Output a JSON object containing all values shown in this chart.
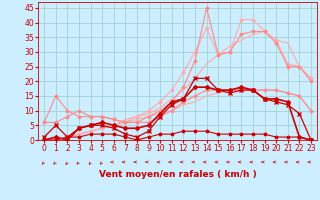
{
  "background_color": "#cceeff",
  "grid_color": "#99cccc",
  "xlabel": "Vent moyen/en rafales ( km/h )",
  "xlabel_color": "#cc0000",
  "xlabel_fontsize": 6.5,
  "tick_color": "#cc0000",
  "tick_fontsize": 5.5,
  "xlim": [
    -0.5,
    23.5
  ],
  "ylim": [
    0,
    47
  ],
  "yticks": [
    0,
    5,
    10,
    15,
    20,
    25,
    30,
    35,
    40,
    45
  ],
  "xticks": [
    0,
    1,
    2,
    3,
    4,
    5,
    6,
    7,
    8,
    9,
    10,
    11,
    12,
    13,
    14,
    15,
    16,
    17,
    18,
    19,
    20,
    21,
    22,
    23
  ],
  "lines": [
    {
      "comment": "dark red flat line near 0 with star markers",
      "x": [
        0,
        1,
        2,
        3,
        4,
        5,
        6,
        7,
        8,
        9,
        10,
        11,
        12,
        13,
        14,
        15,
        16,
        17,
        18,
        19,
        20,
        21,
        22,
        23
      ],
      "y": [
        0,
        0,
        1,
        1,
        2,
        2,
        2,
        1,
        0,
        1,
        2,
        2,
        3,
        3,
        3,
        2,
        2,
        2,
        2,
        2,
        1,
        1,
        1,
        0
      ],
      "color": "#cc0000",
      "lw": 0.8,
      "marker": "*",
      "ms": 2.5,
      "zorder": 5
    },
    {
      "comment": "dark red line with cross markers, moderate rise",
      "x": [
        0,
        1,
        2,
        3,
        4,
        5,
        6,
        7,
        8,
        9,
        10,
        11,
        12,
        13,
        14,
        15,
        16,
        17,
        18,
        19,
        20,
        21,
        22,
        23
      ],
      "y": [
        1,
        5,
        1,
        4,
        5,
        5,
        4,
        2,
        1,
        3,
        8,
        12,
        14,
        21,
        21,
        17,
        16,
        17,
        17,
        14,
        13,
        12,
        9,
        0
      ],
      "color": "#cc0000",
      "lw": 0.9,
      "marker": "x",
      "ms": 3,
      "zorder": 5
    },
    {
      "comment": "light pink diagonal rising line (straight-ish from 0 to ~17)",
      "x": [
        0,
        1,
        2,
        3,
        4,
        5,
        6,
        7,
        8,
        9,
        10,
        11,
        12,
        13,
        14,
        15,
        16,
        17,
        18,
        19,
        20,
        21,
        22,
        23
      ],
      "y": [
        0,
        0,
        1,
        2,
        3,
        4,
        5,
        6,
        7,
        8,
        9,
        10,
        12,
        13,
        15,
        16,
        17,
        17,
        17,
        17,
        17,
        16,
        15,
        10
      ],
      "color": "#ffaaaa",
      "lw": 0.8,
      "marker": null,
      "ms": 0,
      "zorder": 3
    },
    {
      "comment": "light pink steeper diagonal",
      "x": [
        0,
        1,
        2,
        3,
        4,
        5,
        6,
        7,
        8,
        9,
        10,
        11,
        12,
        13,
        14,
        15,
        16,
        17,
        18,
        19,
        20,
        21,
        22,
        23
      ],
      "y": [
        0,
        0,
        1,
        2,
        3,
        4,
        5,
        7,
        8,
        9,
        11,
        14,
        17,
        21,
        26,
        29,
        32,
        34,
        36,
        37,
        34,
        33,
        25,
        21
      ],
      "color": "#ffaaaa",
      "lw": 0.8,
      "marker": null,
      "ms": 0,
      "zorder": 3
    },
    {
      "comment": "light pink steepest diagonal with diamond markers",
      "x": [
        0,
        1,
        2,
        3,
        4,
        5,
        6,
        7,
        8,
        9,
        10,
        11,
        12,
        13,
        14,
        15,
        16,
        17,
        18,
        19,
        20,
        21,
        22,
        23
      ],
      "y": [
        0,
        0,
        1,
        2,
        3,
        4,
        5,
        6,
        8,
        10,
        13,
        17,
        23,
        30,
        38,
        29,
        30,
        41,
        41,
        37,
        34,
        26,
        25,
        21
      ],
      "color": "#ffaaaa",
      "lw": 0.8,
      "marker": "D",
      "ms": 1.5,
      "zorder": 3
    },
    {
      "comment": "medium pink line starting high at 6 then dipping then rising",
      "x": [
        0,
        1,
        2,
        3,
        4,
        5,
        6,
        7,
        8,
        9,
        10,
        11,
        12,
        13,
        14,
        15,
        16,
        17,
        18,
        19,
        20,
        21,
        22,
        23
      ],
      "y": [
        6,
        6,
        8,
        10,
        8,
        8,
        7,
        6,
        6,
        6,
        8,
        10,
        13,
        15,
        17,
        17,
        17,
        17,
        17,
        17,
        17,
        16,
        15,
        10
      ],
      "color": "#ff8888",
      "lw": 0.8,
      "marker": "D",
      "ms": 1.5,
      "zorder": 4
    },
    {
      "comment": "medium pink line spike at x=1 ~15, then drops, then rises",
      "x": [
        0,
        1,
        2,
        3,
        4,
        5,
        6,
        7,
        8,
        9,
        10,
        11,
        12,
        13,
        14,
        15,
        16,
        17,
        18,
        19,
        20,
        21,
        22,
        23
      ],
      "y": [
        6,
        15,
        10,
        8,
        8,
        8,
        7,
        6,
        6,
        8,
        10,
        13,
        18,
        27,
        45,
        29,
        30,
        36,
        37,
        37,
        33,
        25,
        25,
        20
      ],
      "color": "#ff8888",
      "lw": 0.8,
      "marker": "D",
      "ms": 1.5,
      "zorder": 4
    },
    {
      "comment": "dark red bold line moderate values with diamond markers",
      "x": [
        0,
        1,
        2,
        3,
        4,
        5,
        6,
        7,
        8,
        9,
        10,
        11,
        12,
        13,
        14,
        15,
        16,
        17,
        18,
        19,
        20,
        21,
        22,
        23
      ],
      "y": [
        0,
        1,
        0,
        4,
        5,
        6,
        5,
        4,
        4,
        5,
        9,
        13,
        14,
        18,
        18,
        17,
        17,
        18,
        17,
        14,
        14,
        13,
        1,
        0
      ],
      "color": "#cc0000",
      "lw": 1.2,
      "marker": "D",
      "ms": 2,
      "zorder": 5
    }
  ],
  "wind_arrow_angles": [
    225,
    225,
    210,
    225,
    210,
    225,
    270,
    270,
    270,
    270,
    270,
    270,
    270,
    270,
    270,
    270,
    270,
    270,
    270,
    270,
    270,
    270,
    270,
    270
  ]
}
